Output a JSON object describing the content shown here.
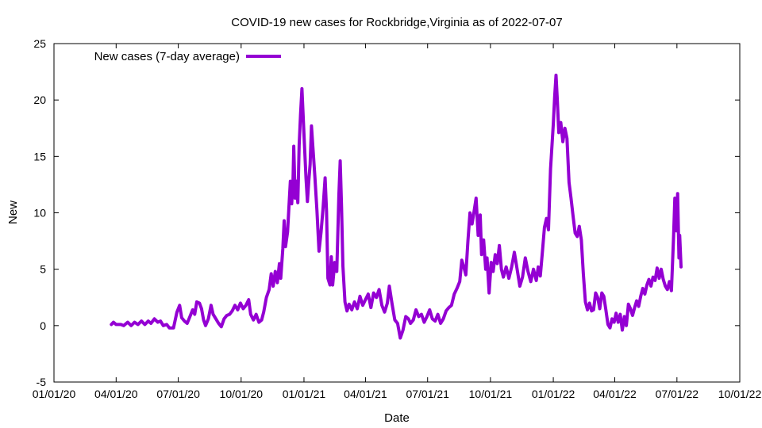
{
  "chart_data": {
    "type": "line",
    "title": "COVID-19 new cases for Rockbridge,Virginia as of 2022-07-07",
    "xlabel": "Date",
    "ylabel": "New",
    "xlim": [
      "2020-01-01",
      "2022-10-01"
    ],
    "ylim": [
      -5,
      25
    ],
    "x_ticks": [
      "2020-01-01",
      "2020-04-01",
      "2020-07-01",
      "2020-10-01",
      "2021-01-01",
      "2021-04-01",
      "2021-07-01",
      "2021-10-01",
      "2022-01-01",
      "2022-04-01",
      "2022-07-01",
      "2022-10-01"
    ],
    "x_tick_labels": [
      "01/01/20",
      "04/01/20",
      "07/01/20",
      "10/01/20",
      "01/01/21",
      "04/01/21",
      "07/01/21",
      "10/01/21",
      "01/01/22",
      "04/01/22",
      "07/01/22",
      "10/01/22"
    ],
    "y_ticks": [
      -5,
      0,
      5,
      10,
      15,
      20,
      25
    ],
    "y_tick_labels": [
      "-5",
      "0",
      "5",
      "10",
      "15",
      "20",
      "25"
    ],
    "grid": false,
    "legend_position": "top-left",
    "series": [
      {
        "name": "New cases (7-day average)",
        "color": "#9400d3",
        "points": [
          [
            "2020-03-25",
            0.1
          ],
          [
            "2020-03-28",
            0.3
          ],
          [
            "2020-04-01",
            0.1
          ],
          [
            "2020-04-08",
            0.1
          ],
          [
            "2020-04-12",
            0.0
          ],
          [
            "2020-04-18",
            0.3
          ],
          [
            "2020-04-23",
            0.0
          ],
          [
            "2020-04-28",
            0.3
          ],
          [
            "2020-05-03",
            0.1
          ],
          [
            "2020-05-08",
            0.4
          ],
          [
            "2020-05-13",
            0.1
          ],
          [
            "2020-05-18",
            0.4
          ],
          [
            "2020-05-22",
            0.2
          ],
          [
            "2020-05-27",
            0.6
          ],
          [
            "2020-06-01",
            0.3
          ],
          [
            "2020-06-05",
            0.4
          ],
          [
            "2020-06-09",
            0.0
          ],
          [
            "2020-06-14",
            0.1
          ],
          [
            "2020-06-18",
            -0.2
          ],
          [
            "2020-06-24",
            -0.2
          ],
          [
            "2020-06-29",
            1.2
          ],
          [
            "2020-07-03",
            1.8
          ],
          [
            "2020-07-06",
            0.7
          ],
          [
            "2020-07-10",
            0.4
          ],
          [
            "2020-07-14",
            0.2
          ],
          [
            "2020-07-18",
            0.8
          ],
          [
            "2020-07-22",
            1.4
          ],
          [
            "2020-07-25",
            1.0
          ],
          [
            "2020-07-28",
            2.1
          ],
          [
            "2020-08-01",
            2.0
          ],
          [
            "2020-08-04",
            1.5
          ],
          [
            "2020-08-07",
            0.5
          ],
          [
            "2020-08-10",
            0.0
          ],
          [
            "2020-08-14",
            0.6
          ],
          [
            "2020-08-18",
            1.8
          ],
          [
            "2020-08-21",
            1.0
          ],
          [
            "2020-08-25",
            0.6
          ],
          [
            "2020-08-29",
            0.2
          ],
          [
            "2020-09-02",
            -0.1
          ],
          [
            "2020-09-06",
            0.6
          ],
          [
            "2020-09-10",
            0.9
          ],
          [
            "2020-09-14",
            1.0
          ],
          [
            "2020-09-18",
            1.3
          ],
          [
            "2020-09-22",
            1.8
          ],
          [
            "2020-09-26",
            1.4
          ],
          [
            "2020-09-30",
            2.0
          ],
          [
            "2020-10-04",
            1.5
          ],
          [
            "2020-10-08",
            1.8
          ],
          [
            "2020-10-12",
            2.3
          ],
          [
            "2020-10-15",
            1.0
          ],
          [
            "2020-10-19",
            0.5
          ],
          [
            "2020-10-23",
            1.0
          ],
          [
            "2020-10-27",
            0.3
          ],
          [
            "2020-10-31",
            0.5
          ],
          [
            "2020-11-03",
            1.2
          ],
          [
            "2020-11-07",
            2.5
          ],
          [
            "2020-11-11",
            3.2
          ],
          [
            "2020-11-14",
            4.6
          ],
          [
            "2020-11-17",
            3.5
          ],
          [
            "2020-11-20",
            4.8
          ],
          [
            "2020-11-23",
            3.8
          ],
          [
            "2020-11-26",
            5.5
          ],
          [
            "2020-11-28",
            4.2
          ],
          [
            "2020-12-01",
            6.8
          ],
          [
            "2020-12-03",
            9.3
          ],
          [
            "2020-12-05",
            7.0
          ],
          [
            "2020-12-08",
            8.3
          ],
          [
            "2020-12-10",
            10.5
          ],
          [
            "2020-12-12",
            12.8
          ],
          [
            "2020-12-14",
            10.8
          ],
          [
            "2020-12-16",
            13.0
          ],
          [
            "2020-12-17",
            15.9
          ],
          [
            "2020-12-19",
            11.3
          ],
          [
            "2020-12-21",
            12.8
          ],
          [
            "2020-12-23",
            10.9
          ],
          [
            "2020-12-25",
            16.0
          ],
          [
            "2020-12-27",
            18.8
          ],
          [
            "2020-12-29",
            21.0
          ],
          [
            "2021-01-01",
            16.9
          ],
          [
            "2021-01-04",
            13.1
          ],
          [
            "2021-01-06",
            11.0
          ],
          [
            "2021-01-08",
            12.8
          ],
          [
            "2021-01-10",
            14.3
          ],
          [
            "2021-01-12",
            17.7
          ],
          [
            "2021-01-14",
            15.8
          ],
          [
            "2021-01-17",
            13.2
          ],
          [
            "2021-01-20",
            10.2
          ],
          [
            "2021-01-23",
            6.6
          ],
          [
            "2021-01-26",
            8.3
          ],
          [
            "2021-01-29",
            10.5
          ],
          [
            "2021-02-01",
            13.1
          ],
          [
            "2021-02-03",
            10.1
          ],
          [
            "2021-02-05",
            4.2
          ],
          [
            "2021-02-08",
            3.6
          ],
          [
            "2021-02-10",
            6.1
          ],
          [
            "2021-02-12",
            3.6
          ],
          [
            "2021-02-15",
            5.6
          ],
          [
            "2021-02-18",
            4.8
          ],
          [
            "2021-02-21",
            11.5
          ],
          [
            "2021-02-23",
            14.6
          ],
          [
            "2021-02-25",
            10.5
          ],
          [
            "2021-02-27",
            5.3
          ],
          [
            "2021-03-02",
            2.1
          ],
          [
            "2021-03-05",
            1.3
          ],
          [
            "2021-03-08",
            1.9
          ],
          [
            "2021-03-12",
            1.4
          ],
          [
            "2021-03-16",
            2.1
          ],
          [
            "2021-03-20",
            1.5
          ],
          [
            "2021-03-24",
            2.6
          ],
          [
            "2021-03-28",
            1.8
          ],
          [
            "2021-04-01",
            2.3
          ],
          [
            "2021-04-05",
            2.8
          ],
          [
            "2021-04-09",
            1.6
          ],
          [
            "2021-04-13",
            2.9
          ],
          [
            "2021-04-17",
            2.5
          ],
          [
            "2021-04-21",
            3.2
          ],
          [
            "2021-04-25",
            1.8
          ],
          [
            "2021-04-29",
            1.2
          ],
          [
            "2021-05-03",
            2.0
          ],
          [
            "2021-05-06",
            3.5
          ],
          [
            "2021-05-10",
            1.9
          ],
          [
            "2021-05-14",
            0.5
          ],
          [
            "2021-05-18",
            0.2
          ],
          [
            "2021-05-22",
            -1.1
          ],
          [
            "2021-05-26",
            -0.4
          ],
          [
            "2021-05-30",
            0.8
          ],
          [
            "2021-06-03",
            0.6
          ],
          [
            "2021-06-06",
            0.2
          ],
          [
            "2021-06-10",
            0.5
          ],
          [
            "2021-06-14",
            1.4
          ],
          [
            "2021-06-18",
            0.8
          ],
          [
            "2021-06-22",
            1.0
          ],
          [
            "2021-06-26",
            0.3
          ],
          [
            "2021-06-30",
            0.8
          ],
          [
            "2021-07-04",
            1.4
          ],
          [
            "2021-07-08",
            0.6
          ],
          [
            "2021-07-12",
            0.4
          ],
          [
            "2021-07-16",
            1.0
          ],
          [
            "2021-07-20",
            0.2
          ],
          [
            "2021-07-24",
            0.6
          ],
          [
            "2021-07-28",
            1.3
          ],
          [
            "2021-08-01",
            1.6
          ],
          [
            "2021-08-05",
            1.8
          ],
          [
            "2021-08-09",
            2.8
          ],
          [
            "2021-08-13",
            3.3
          ],
          [
            "2021-08-17",
            3.9
          ],
          [
            "2021-08-20",
            5.8
          ],
          [
            "2021-08-23",
            5.2
          ],
          [
            "2021-08-26",
            4.5
          ],
          [
            "2021-08-29",
            7.5
          ],
          [
            "2021-09-01",
            10.0
          ],
          [
            "2021-09-04",
            9.0
          ],
          [
            "2021-09-07",
            10.1
          ],
          [
            "2021-09-10",
            11.3
          ],
          [
            "2021-09-13",
            8.0
          ],
          [
            "2021-09-16",
            9.8
          ],
          [
            "2021-09-18",
            6.3
          ],
          [
            "2021-09-21",
            7.6
          ],
          [
            "2021-09-24",
            5.0
          ],
          [
            "2021-09-26",
            6.0
          ],
          [
            "2021-09-29",
            2.9
          ],
          [
            "2021-10-02",
            5.6
          ],
          [
            "2021-10-05",
            4.8
          ],
          [
            "2021-10-08",
            6.3
          ],
          [
            "2021-10-11",
            5.5
          ],
          [
            "2021-10-14",
            7.1
          ],
          [
            "2021-10-17",
            5.0
          ],
          [
            "2021-10-20",
            4.3
          ],
          [
            "2021-10-24",
            5.2
          ],
          [
            "2021-10-28",
            4.2
          ],
          [
            "2021-11-01",
            5.2
          ],
          [
            "2021-11-05",
            6.5
          ],
          [
            "2021-11-09",
            5.0
          ],
          [
            "2021-11-13",
            3.5
          ],
          [
            "2021-11-17",
            4.3
          ],
          [
            "2021-11-21",
            6.0
          ],
          [
            "2021-11-25",
            4.8
          ],
          [
            "2021-11-29",
            3.9
          ],
          [
            "2021-12-03",
            5.0
          ],
          [
            "2021-12-07",
            4.0
          ],
          [
            "2021-12-10",
            5.2
          ],
          [
            "2021-12-13",
            4.4
          ],
          [
            "2021-12-16",
            6.5
          ],
          [
            "2021-12-19",
            8.7
          ],
          [
            "2021-12-22",
            9.5
          ],
          [
            "2021-12-25",
            8.5
          ],
          [
            "2021-12-28",
            13.9
          ],
          [
            "2022-01-01",
            17.9
          ],
          [
            "2022-01-03",
            20.3
          ],
          [
            "2022-01-05",
            22.2
          ],
          [
            "2022-01-07",
            19.9
          ],
          [
            "2022-01-09",
            17.1
          ],
          [
            "2022-01-12",
            18.0
          ],
          [
            "2022-01-15",
            16.3
          ],
          [
            "2022-01-18",
            17.5
          ],
          [
            "2022-01-21",
            16.6
          ],
          [
            "2022-01-24",
            12.7
          ],
          [
            "2022-01-27",
            11.3
          ],
          [
            "2022-01-30",
            9.7
          ],
          [
            "2022-02-02",
            8.2
          ],
          [
            "2022-02-05",
            7.9
          ],
          [
            "2022-02-08",
            8.8
          ],
          [
            "2022-02-11",
            7.6
          ],
          [
            "2022-02-14",
            4.6
          ],
          [
            "2022-02-17",
            2.1
          ],
          [
            "2022-02-20",
            1.4
          ],
          [
            "2022-02-23",
            2.0
          ],
          [
            "2022-02-26",
            1.3
          ],
          [
            "2022-03-01",
            1.4
          ],
          [
            "2022-03-04",
            2.9
          ],
          [
            "2022-03-07",
            2.5
          ],
          [
            "2022-03-10",
            1.5
          ],
          [
            "2022-03-13",
            2.9
          ],
          [
            "2022-03-16",
            2.6
          ],
          [
            "2022-03-19",
            1.4
          ],
          [
            "2022-03-22",
            0.1
          ],
          [
            "2022-03-25",
            -0.2
          ],
          [
            "2022-03-28",
            0.6
          ],
          [
            "2022-03-31",
            0.3
          ],
          [
            "2022-04-03",
            1.1
          ],
          [
            "2022-04-06",
            0.3
          ],
          [
            "2022-04-09",
            1.0
          ],
          [
            "2022-04-12",
            -0.4
          ],
          [
            "2022-04-15",
            0.8
          ],
          [
            "2022-04-18",
            0.0
          ],
          [
            "2022-04-21",
            1.9
          ],
          [
            "2022-04-24",
            1.5
          ],
          [
            "2022-04-27",
            0.9
          ],
          [
            "2022-04-30",
            1.6
          ],
          [
            "2022-05-03",
            2.2
          ],
          [
            "2022-05-06",
            1.7
          ],
          [
            "2022-05-09",
            2.6
          ],
          [
            "2022-05-12",
            3.3
          ],
          [
            "2022-05-15",
            2.8
          ],
          [
            "2022-05-18",
            3.6
          ],
          [
            "2022-05-21",
            4.1
          ],
          [
            "2022-05-24",
            3.5
          ],
          [
            "2022-05-27",
            4.3
          ],
          [
            "2022-05-30",
            4.0
          ],
          [
            "2022-06-02",
            5.1
          ],
          [
            "2022-06-05",
            4.2
          ],
          [
            "2022-06-08",
            5.0
          ],
          [
            "2022-06-11",
            4.1
          ],
          [
            "2022-06-14",
            3.5
          ],
          [
            "2022-06-17",
            3.2
          ],
          [
            "2022-06-20",
            3.9
          ],
          [
            "2022-06-23",
            3.1
          ],
          [
            "2022-06-26",
            7.7
          ],
          [
            "2022-06-28",
            11.3
          ],
          [
            "2022-06-30",
            8.4
          ],
          [
            "2022-07-02",
            11.7
          ],
          [
            "2022-07-04",
            6.0
          ],
          [
            "2022-07-05",
            8.0
          ],
          [
            "2022-07-07",
            5.2
          ]
        ]
      }
    ]
  }
}
